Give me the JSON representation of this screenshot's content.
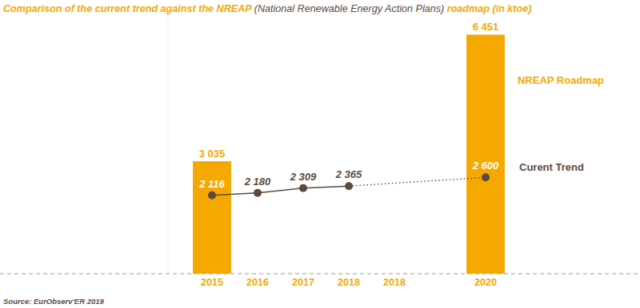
{
  "chart_data": {
    "type": "bar",
    "title": "Comparison of the current trend against the NREAP (National Renewable Energy Action Plans) roadmap (in ktoe)",
    "source": "Source: EurObserv'ER 2019",
    "categories": [
      "2015",
      "2016",
      "2017",
      "2018",
      "2018",
      null,
      "2020"
    ],
    "series": [
      {
        "name": "NREAP Roadmap",
        "type": "bar",
        "color": "#f5a800",
        "values": [
          3035,
          null,
          null,
          null,
          null,
          null,
          6451
        ],
        "value_labels": [
          "3 035",
          null,
          null,
          null,
          null,
          null,
          "6 451"
        ]
      },
      {
        "name": "Curent Trend",
        "type": "line",
        "color": "#5c4a3f",
        "marker": "circle",
        "line_style": "solid",
        "values": [
          2116,
          2180,
          2309,
          2365,
          null,
          null,
          2600
        ],
        "value_labels": [
          "2 116",
          "2 180",
          "2 309",
          "2 365",
          null,
          null,
          "2 600"
        ]
      }
    ],
    "ylim": [
      0,
      7000
    ],
    "yticks": [
      0
    ],
    "grid": true,
    "data_labels": true,
    "tick_labels": "x",
    "legend": "right"
  }
}
